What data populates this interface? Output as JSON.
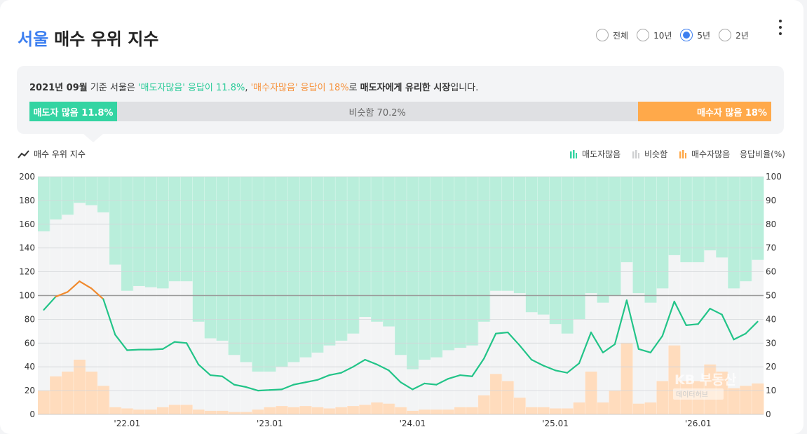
{
  "header": {
    "city": "서울",
    "title": "매수 우위 지수",
    "periods": [
      {
        "label": "전체",
        "selected": false
      },
      {
        "label": "10년",
        "selected": false
      },
      {
        "label": "5년",
        "selected": true
      },
      {
        "label": "2년",
        "selected": false
      }
    ],
    "menu_icon": "kebab-menu-icon"
  },
  "summary": {
    "date": "2021년 09월",
    "t1": " 기준 서울은 ",
    "seller_quote": "'매도자많음' 응답이 11.8%",
    "t2": ", ",
    "buyer_quote": "'매수자많음' 응답이 18%",
    "t3": "로 ",
    "conclusion": "매도자에게 유리한 시장",
    "t4": "입니다.",
    "bar": {
      "seller_label": "매도자 많음 11.8%",
      "neutral_label": "비슷함 70.2%",
      "buyer_label": "매수자 많음 18%"
    }
  },
  "chart_header": {
    "label": "매수 우위 지수",
    "legend": [
      "매도자많음",
      "비슷함",
      "매수자많음"
    ],
    "right_axis_label": "응답비율(%)"
  },
  "colors": {
    "seller": "#33d4a2",
    "seller_area": "#b9eedb",
    "neutral_area": "#f3f4f5",
    "buyer_area": "#ffdcbd",
    "index_below": "#22c488",
    "index_above": "#f08a2e",
    "accent": "#3d7ff0"
  },
  "chart_data": {
    "type": "bar+line",
    "x_ticks": [
      "'22.01",
      "'23.01",
      "'24.01",
      "'25.01",
      "'26.01"
    ],
    "left_ylim": [
      0,
      200
    ],
    "left_yticks": [
      0,
      20,
      40,
      60,
      80,
      100,
      120,
      140,
      160,
      180,
      200
    ],
    "right_ylim": [
      0,
      100
    ],
    "right_yticks": [
      0,
      10,
      20,
      30,
      40,
      50,
      60,
      70,
      80,
      90,
      100
    ],
    "reference_line": 100,
    "buy_index": [
      88,
      99,
      103,
      112,
      106,
      97,
      67,
      54,
      54.5,
      54.5,
      55,
      61,
      60,
      42,
      33,
      32,
      25,
      23,
      20,
      20.5,
      21,
      25,
      27,
      29,
      33,
      35,
      40,
      46,
      42,
      37,
      27,
      21,
      26,
      25,
      30,
      33,
      32,
      47,
      68,
      69,
      58,
      46,
      41,
      37,
      35,
      43,
      69,
      52,
      59,
      96,
      55,
      52,
      66,
      95,
      75,
      76,
      89,
      84,
      63,
      68,
      78
    ],
    "series": [
      {
        "name": "매수자많음",
        "values": [
          10,
          16,
          18,
          23,
          18,
          12,
          3,
          2.5,
          2,
          2,
          3,
          4,
          4,
          2,
          1.5,
          1.5,
          1,
          1,
          2,
          3,
          3.5,
          3,
          3.5,
          3,
          2.5,
          3,
          3.5,
          4,
          5,
          4.5,
          3,
          1.5,
          2,
          2,
          2,
          3,
          3,
          8,
          17,
          14,
          7,
          3,
          3,
          2.5,
          2.5,
          5,
          18,
          5,
          10,
          30,
          4.5,
          5,
          14,
          29,
          14,
          14,
          21,
          18,
          11,
          12,
          13
        ]
      },
      {
        "name": "매도자많음",
        "values": [
          23,
          18,
          16,
          11,
          12,
          15,
          37,
          48,
          46,
          46.5,
          47,
          44,
          44,
          61,
          68,
          69,
          75,
          78,
          82,
          82,
          80,
          78,
          76,
          74,
          71,
          69,
          66,
          59,
          61,
          63,
          75,
          81,
          77,
          76,
          73,
          72,
          71,
          61,
          48,
          48,
          49,
          57,
          58,
          62,
          66,
          60,
          49,
          53,
          50,
          36,
          49,
          53,
          47,
          33,
          36,
          36,
          31,
          34,
          47,
          44,
          35
        ]
      }
    ]
  }
}
